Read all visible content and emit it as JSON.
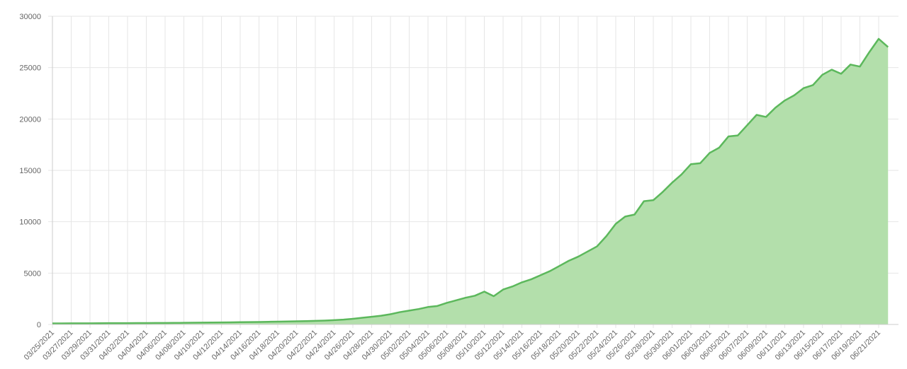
{
  "chart_data": {
    "type": "area",
    "categories": [
      "03/25/2021",
      null,
      "03/27/2021",
      null,
      "03/29/2021",
      null,
      "03/31/2021",
      null,
      "04/02/2021",
      null,
      "04/04/2021",
      null,
      "04/06/2021",
      null,
      "04/08/2021",
      null,
      "04/10/2021",
      null,
      "04/12/2021",
      null,
      "04/14/2021",
      null,
      "04/16/2021",
      null,
      "04/18/2021",
      null,
      "04/20/2021",
      null,
      "04/22/2021",
      null,
      "04/24/2021",
      null,
      "04/26/2021",
      null,
      "04/28/2021",
      null,
      "04/30/2021",
      null,
      "05/02/2021",
      null,
      "05/04/2021",
      null,
      "05/06/2021",
      null,
      "05/08/2021",
      null,
      "05/10/2021",
      null,
      "05/12/2021",
      null,
      "05/14/2021",
      null,
      "05/16/2021",
      null,
      "05/18/2021",
      null,
      "05/20/2021",
      null,
      "05/22/2021",
      null,
      "05/24/2021",
      null,
      "05/26/2021",
      null,
      "05/28/2021",
      null,
      "05/30/2021",
      null,
      "06/01/2021",
      null,
      "06/03/2021",
      null,
      "06/05/2021",
      null,
      "06/07/2021",
      null,
      "06/09/2021",
      null,
      "06/11/2021",
      null,
      "06/13/2021",
      null,
      "06/15/2021",
      null,
      "06/17/2021",
      null,
      "06/19/2021",
      null,
      "06/21/2021",
      null
    ],
    "values": [
      100,
      105,
      110,
      112,
      115,
      120,
      125,
      128,
      132,
      135,
      140,
      145,
      150,
      155,
      160,
      170,
      180,
      190,
      200,
      210,
      220,
      230,
      245,
      260,
      275,
      290,
      310,
      330,
      350,
      380,
      420,
      470,
      550,
      650,
      750,
      850,
      1000,
      1200,
      1350,
      1500,
      1700,
      1800,
      2100,
      2350,
      2600,
      2800,
      3200,
      2750,
      3400,
      3700,
      4100,
      4400,
      4800,
      5200,
      5700,
      6200,
      6600,
      7100,
      7600,
      8600,
      9800,
      10500,
      10700,
      12000,
      12100,
      12900,
      13800,
      14600,
      15600,
      15700,
      16700,
      17200,
      18300,
      18400,
      19400,
      20400,
      20200,
      21100,
      21800,
      22300,
      23000,
      23300,
      24300,
      24800,
      24400,
      25300,
      25100,
      26500,
      27800,
      27000
    ],
    "color": "#5cb85c",
    "fill": "#b3dfab",
    "ylim": [
      0,
      30000
    ],
    "yticks": [
      0,
      5000,
      10000,
      15000,
      20000,
      25000,
      30000
    ],
    "grid": true
  }
}
